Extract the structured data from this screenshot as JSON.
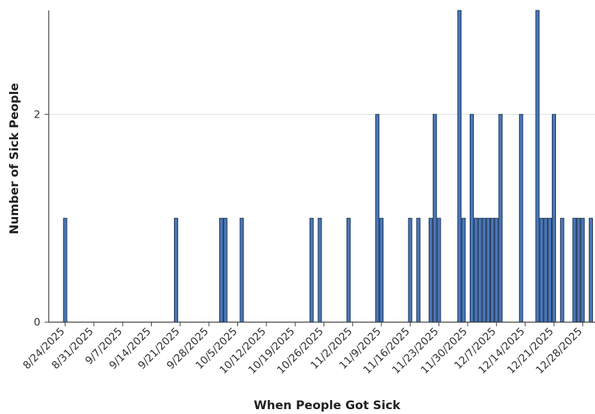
{
  "chart_data": {
    "type": "bar",
    "title": "",
    "xlabel": "When People Got Sick",
    "ylabel": "Number of Sick People",
    "ylim": [
      0,
      3
    ],
    "yticks": [
      0,
      2
    ],
    "grid": "horizontal",
    "legend": "none",
    "bar_color": "#4a76b6",
    "bar_edge_color": "#1f3556",
    "x_range": [
      "2025-08-20",
      "2025-12-31"
    ],
    "xticks": [
      {
        "date": "2025-08-24",
        "label": "8/24/2025"
      },
      {
        "date": "2025-08-31",
        "label": "8/31/2025"
      },
      {
        "date": "2025-09-07",
        "label": "9/7/2025"
      },
      {
        "date": "2025-09-14",
        "label": "9/14/2025"
      },
      {
        "date": "2025-09-21",
        "label": "9/21/2025"
      },
      {
        "date": "2025-09-28",
        "label": "9/28/2025"
      },
      {
        "date": "2025-10-05",
        "label": "10/5/2025"
      },
      {
        "date": "2025-10-12",
        "label": "10/12/2025"
      },
      {
        "date": "2025-10-19",
        "label": "10/19/2025"
      },
      {
        "date": "2025-10-26",
        "label": "10/26/2025"
      },
      {
        "date": "2025-11-02",
        "label": "11/2/2025"
      },
      {
        "date": "2025-11-09",
        "label": "11/9/2025"
      },
      {
        "date": "2025-11-16",
        "label": "11/16/2025"
      },
      {
        "date": "2025-11-23",
        "label": "11/23/2025"
      },
      {
        "date": "2025-11-30",
        "label": "11/30/2025"
      },
      {
        "date": "2025-12-07",
        "label": "12/7/2025"
      },
      {
        "date": "2025-12-14",
        "label": "12/14/2025"
      },
      {
        "date": "2025-12-21",
        "label": "12/21/2025"
      },
      {
        "date": "2025-12-28",
        "label": "12/28/2025"
      }
    ],
    "x": [
      "2025-08-24",
      "2025-09-20",
      "2025-10-01",
      "2025-10-02",
      "2025-10-06",
      "2025-10-23",
      "2025-10-25",
      "2025-11-01",
      "2025-11-08",
      "2025-11-09",
      "2025-11-16",
      "2025-11-18",
      "2025-11-21",
      "2025-11-22",
      "2025-11-23",
      "2025-11-28",
      "2025-11-29",
      "2025-12-01",
      "2025-12-02",
      "2025-12-03",
      "2025-12-04",
      "2025-12-05",
      "2025-12-06",
      "2025-12-07",
      "2025-12-08",
      "2025-12-13",
      "2025-12-17",
      "2025-12-18",
      "2025-12-19",
      "2025-12-20",
      "2025-12-21",
      "2025-12-23",
      "2025-12-26",
      "2025-12-27",
      "2025-12-28",
      "2025-12-30"
    ],
    "values": [
      1,
      1,
      1,
      1,
      1,
      1,
      1,
      1,
      2,
      1,
      1,
      1,
      1,
      2,
      1,
      3,
      1,
      2,
      1,
      1,
      1,
      1,
      1,
      1,
      2,
      2,
      3,
      1,
      1,
      1,
      2,
      1,
      1,
      1,
      1,
      1
    ]
  }
}
